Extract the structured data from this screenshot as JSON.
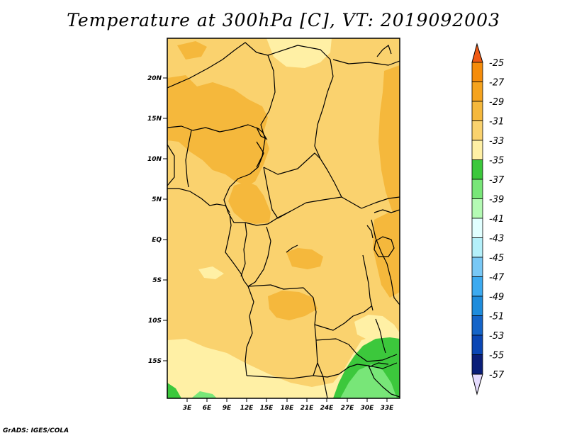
{
  "title": "Temperature at 300hPa [C], VT: 2019092003",
  "credit": "GrADS: IGES/COLA",
  "map": {
    "lat_labels": [
      "20N",
      "15N",
      "10N",
      "5N",
      "EQ",
      "5S",
      "10S",
      "15S"
    ],
    "lon_labels": [
      "3E",
      "6E",
      "9E",
      "12E",
      "15E",
      "18E",
      "21E",
      "24E",
      "27E",
      "30E",
      "33E"
    ]
  },
  "colorbar": {
    "labels": [
      "-25",
      "-27",
      "-29",
      "-31",
      "-33",
      "-35",
      "-37",
      "-39",
      "-41",
      "-43",
      "-45",
      "-47",
      "-49",
      "-51",
      "-53",
      "-55",
      "-57"
    ],
    "colors": [
      "#f05a14",
      "#f58c0a",
      "#f5a31e",
      "#f5b83c",
      "#fad26e",
      "#fff0a5",
      "#3cc83c",
      "#78e678",
      "#b4fab4",
      "#e1ffff",
      "#b4f0fa",
      "#78c8f5",
      "#3caaf0",
      "#1e8cdc",
      "#1464c8",
      "#0a46b4",
      "#0a1e78",
      "#e6dcff"
    ]
  },
  "colors": {
    "base": "#fad26e",
    "warm": "#f5b83c",
    "cool": "#fff0a5",
    "green": "#3cc83c",
    "lightgreen": "#78e678",
    "border": "#000000"
  }
}
